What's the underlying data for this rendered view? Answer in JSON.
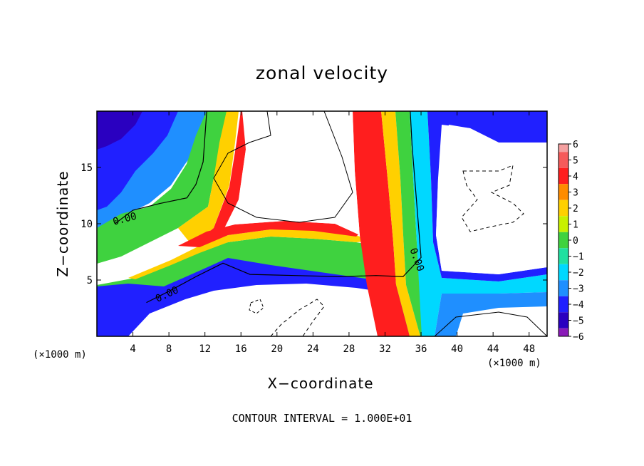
{
  "chart_data": {
    "type": "heatmap",
    "title": "zonal velocity",
    "xlabel": "X−coordinate",
    "ylabel": "Z−coordinate",
    "x_unit": "(×1000 m)",
    "footer": "CONTOUR INTERVAL = 1.000E+01",
    "xlim": [
      0,
      50
    ],
    "ylim": [
      0,
      20
    ],
    "x_ticks": [
      4,
      8,
      12,
      16,
      20,
      24,
      28,
      32,
      36,
      40,
      44,
      48
    ],
    "y_ticks": [
      5,
      10,
      15
    ],
    "colorbar": {
      "levels": [
        6,
        5,
        4,
        3,
        2,
        1,
        0,
        -1,
        -2,
        -3,
        -4,
        -5,
        -6
      ],
      "colors": [
        "#f4a0a0",
        "#f55a5a",
        "#ff1e1e",
        "#ff8c00",
        "#ffd000",
        "#c8f000",
        "#3fd23f",
        "#20e0a0",
        "#00d8ff",
        "#1f8fff",
        "#2020ff",
        "#2a00c0",
        "#8a1ab8"
      ]
    },
    "contour_labels": [
      {
        "text": "0.00",
        "x": 3.1,
        "y": 10.4
      },
      {
        "text": "0.00",
        "x": 7.8,
        "y": 3.7
      },
      {
        "text": "0.00",
        "x": 35.5,
        "y": 6.8
      }
    ],
    "contour_zero_line": [
      [
        2.0,
        10.0
      ],
      [
        4.0,
        11.2
      ],
      [
        7.0,
        11.8
      ],
      [
        10.0,
        12.3
      ],
      [
        11.0,
        13.5
      ],
      [
        11.8,
        15.5
      ],
      [
        12.2,
        20.0
      ]
    ],
    "contour_zero_line_low": [
      [
        5.5,
        3.0
      ],
      [
        8.0,
        4.0
      ],
      [
        11.0,
        5.3
      ],
      [
        14.0,
        6.5
      ],
      [
        17.0,
        5.5
      ],
      [
        22.0,
        5.4
      ],
      [
        27.0,
        5.3
      ],
      [
        31.0,
        5.4
      ],
      [
        34.0,
        5.3
      ],
      [
        36.0,
        7.0
      ],
      [
        35.5,
        12.0
      ],
      [
        35.0,
        17.0
      ],
      [
        34.8,
        20.0
      ]
    ]
  }
}
